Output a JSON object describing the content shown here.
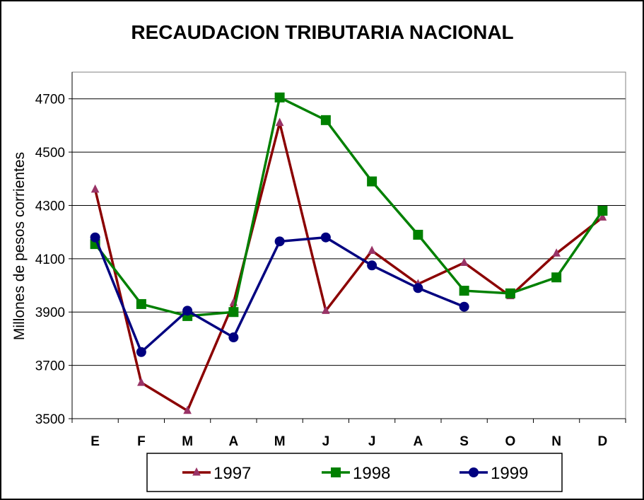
{
  "chart_data": {
    "type": "line",
    "title": "RECAUDACION TRIBUTARIA NACIONAL",
    "xlabel": "",
    "ylabel": "Millones de pesos corrientes",
    "categories": [
      "E",
      "F",
      "M",
      "A",
      "M",
      "J",
      "J",
      "A",
      "S",
      "O",
      "N",
      "D"
    ],
    "ylim": [
      3500,
      4800
    ],
    "yticks": [
      3500,
      3700,
      3900,
      4100,
      4300,
      4500,
      4700
    ],
    "grid": true,
    "legend_position": "bottom",
    "series": [
      {
        "name": "1997",
        "color": "#8b0000",
        "marker_color": "#993366",
        "marker": "triangle",
        "values": [
          4360,
          3635,
          3530,
          3935,
          4610,
          3905,
          4130,
          4005,
          4085,
          3960,
          4120,
          4255
        ]
      },
      {
        "name": "1998",
        "color": "#008000",
        "marker_color": "#008000",
        "marker": "square",
        "values": [
          4155,
          3930,
          3885,
          3900,
          4705,
          4620,
          4390,
          4190,
          3980,
          3970,
          4030,
          4280
        ]
      },
      {
        "name": "1999",
        "color": "#000080",
        "marker_color": "#000080",
        "marker": "circle",
        "values": [
          4180,
          3750,
          3905,
          3805,
          4165,
          4180,
          4075,
          3990,
          3920,
          null,
          null,
          null
        ]
      }
    ]
  }
}
